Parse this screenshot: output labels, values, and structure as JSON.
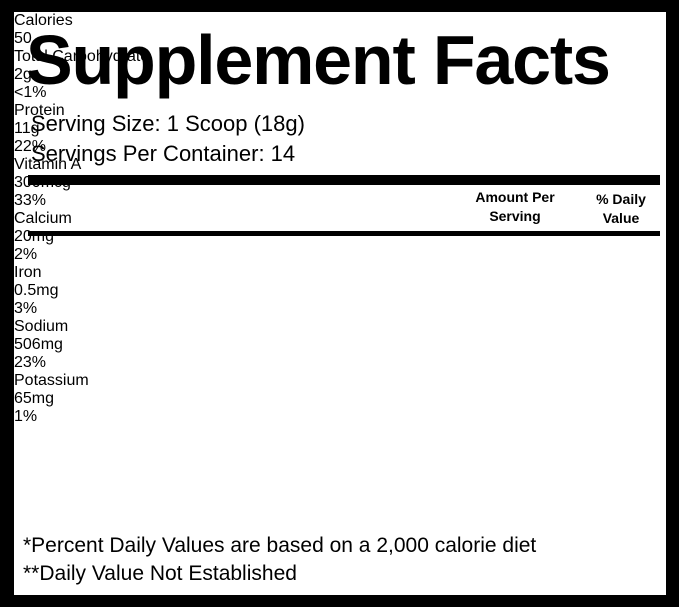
{
  "header": {
    "title": "Supplement Facts",
    "serving_size": "Serving Size: 1 Scoop (18g)",
    "servings_per_container": "Servings Per Container: 14"
  },
  "table": {
    "columns": [
      "Amount Per Serving",
      "% Daily Value"
    ],
    "rows": [
      [
        "Calories",
        "50"
      ],
      [
        "Total Carbohydrate",
        "2g",
        "<1%"
      ],
      [
        "Protein",
        "11g",
        "22%"
      ],
      [
        "Vitamin A",
        "300mcg",
        "33%"
      ],
      [
        "Calcium",
        "20mg",
        "2%"
      ],
      [
        "Iron",
        "0.5mg",
        "3%"
      ],
      [
        "Sodium",
        "506mg",
        "23%"
      ],
      [
        "Potassium",
        "65mg",
        "1%"
      ]
    ]
  },
  "footnotes": [
    "*Percent Daily Values are based on a 2,000 calorie diet",
    "**Daily Value Not Established"
  ]
}
